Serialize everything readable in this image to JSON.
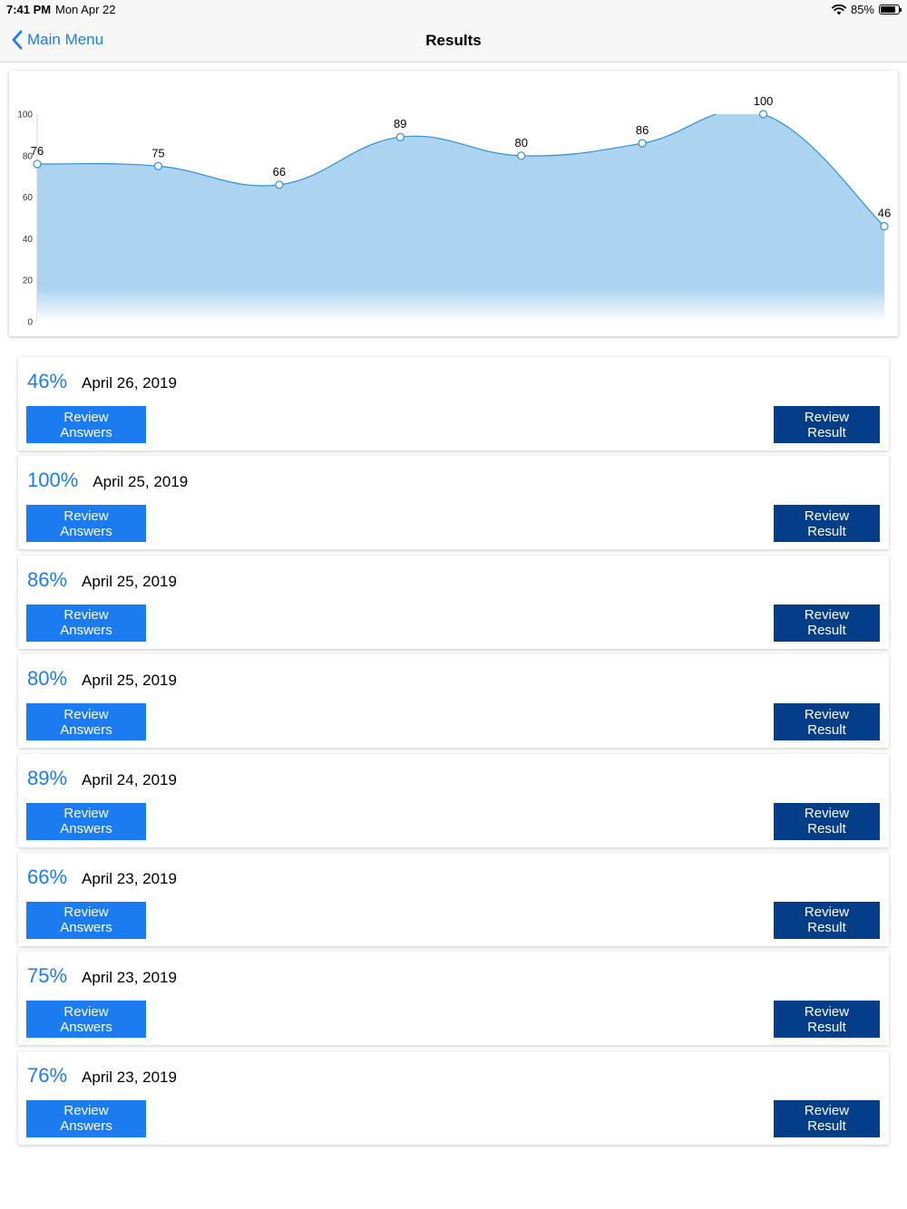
{
  "status_bar": {
    "time": "7:41 PM",
    "date": "Mon Apr 22",
    "battery": "85%",
    "battery_level": 0.85,
    "wifi_icon": "wifi-icon",
    "battery_icon": "battery-icon"
  },
  "nav": {
    "back_label": "Main Menu",
    "back_icon": "chevron-left-icon",
    "title": "Results"
  },
  "chart_data": {
    "type": "area",
    "title": "",
    "xlabel": "",
    "ylabel": "",
    "ylim": [
      0,
      100
    ],
    "y_ticks": [
      "0",
      "20",
      "40",
      "60",
      "80",
      "100"
    ],
    "values": [
      76,
      75,
      66,
      89,
      80,
      86,
      100,
      46
    ],
    "data_labels": [
      "76",
      "75",
      "66",
      "89",
      "80",
      "86",
      "100",
      "46"
    ],
    "grid": false,
    "legend": "none",
    "fill_color": "#acd3f0",
    "line_color": "#2d8fd6"
  },
  "buttons": {
    "review_answers": "Review Answers",
    "review_result": "Review Result"
  },
  "colors": {
    "accent": "#1a7cf0",
    "dark_button": "#043e88"
  },
  "results": [
    {
      "score": "46%",
      "date": "April 26, 2019"
    },
    {
      "score": "100%",
      "date": "April 25, 2019"
    },
    {
      "score": "86%",
      "date": "April 25, 2019"
    },
    {
      "score": "80%",
      "date": "April 25, 2019"
    },
    {
      "score": "89%",
      "date": "April 24, 2019"
    },
    {
      "score": "66%",
      "date": "April 23, 2019"
    },
    {
      "score": "75%",
      "date": "April 23, 2019"
    },
    {
      "score": "76%",
      "date": "April 23, 2019"
    }
  ]
}
